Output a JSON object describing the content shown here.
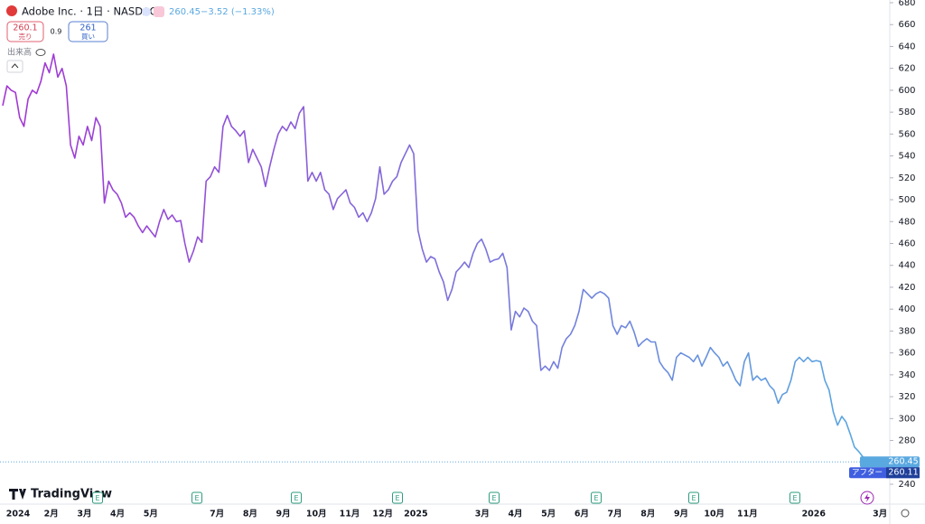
{
  "chart_data": {
    "type": "line",
    "title": "Adobe Inc. · 1日 · NASDAQ",
    "header_price": 260.45,
    "change": "−3.52 (−1.33%)",
    "sell_price": 260.1,
    "sell_label": "売り",
    "spread": 0.9,
    "buy_price": 261.0,
    "buy_label": "買い",
    "volume_label": "出来高",
    "brand": "TradingView",
    "colors": [
      "#a336d4",
      "#5aa8e0"
    ],
    "values": [
      586,
      604,
      600,
      598,
      575,
      567,
      592,
      600,
      597,
      608,
      625,
      616,
      633,
      612,
      620,
      604,
      550,
      538,
      558,
      550,
      567,
      554,
      575,
      567,
      497,
      517,
      509,
      505,
      497,
      484,
      488,
      484,
      476,
      470,
      476,
      471,
      466,
      480,
      491,
      482,
      486,
      480,
      481,
      460,
      443,
      453,
      466,
      461,
      517,
      521,
      530,
      525,
      567,
      577,
      567,
      563,
      558,
      563,
      534,
      546,
      538,
      530,
      512,
      530,
      546,
      560,
      567,
      563,
      571,
      565,
      579,
      585,
      517,
      525,
      517,
      525,
      509,
      505,
      491,
      501,
      505,
      509,
      497,
      493,
      484,
      488,
      480,
      488,
      501,
      530,
      505,
      509,
      517,
      521,
      534,
      542,
      550,
      542,
      472,
      455,
      443,
      448,
      446,
      434,
      425,
      408,
      418,
      434,
      438,
      443,
      438,
      451,
      460,
      464,
      455,
      443,
      445,
      446,
      451,
      438,
      381,
      398,
      393,
      401,
      398,
      389,
      385,
      344,
      348,
      344,
      352,
      346,
      365,
      373,
      377,
      385,
      398,
      418,
      414,
      410,
      414,
      416,
      414,
      410,
      385,
      377,
      385,
      383,
      389,
      379,
      366,
      370,
      373,
      370,
      370,
      352,
      346,
      342,
      335,
      356,
      360,
      358,
      356,
      352,
      358,
      348,
      356,
      365,
      360,
      356,
      348,
      352,
      344,
      335,
      330,
      352,
      360,
      335,
      339,
      335,
      337,
      330,
      326,
      314,
      322,
      324,
      335,
      352,
      356,
      352,
      356,
      352,
      353,
      352,
      335,
      326,
      306,
      294,
      302,
      297,
      286,
      274,
      270,
      265,
      260.45
    ],
    "ylim": [
      240,
      680
    ],
    "yticks": [
      240,
      260,
      280,
      300,
      320,
      340,
      360,
      380,
      400,
      420,
      440,
      460,
      480,
      500,
      520,
      540,
      560,
      580,
      600,
      620,
      640,
      660,
      680
    ],
    "xticks": [
      "2024",
      "2月",
      "3月",
      "4月",
      "5月",
      null,
      "7月",
      "8月",
      "9月",
      "10月",
      "11月",
      "12月",
      "2025",
      null,
      "3月",
      "4月",
      "5月",
      "6月",
      "7月",
      "8月",
      "9月",
      "10月",
      "11月",
      null,
      "2026",
      null,
      "3月"
    ],
    "last_price": 260.45,
    "after_hours_label": "アフター",
    "after_hours_price": 260.11,
    "events": [
      "E",
      "E",
      "E",
      "E",
      "E",
      "E",
      "E",
      "E"
    ]
  }
}
